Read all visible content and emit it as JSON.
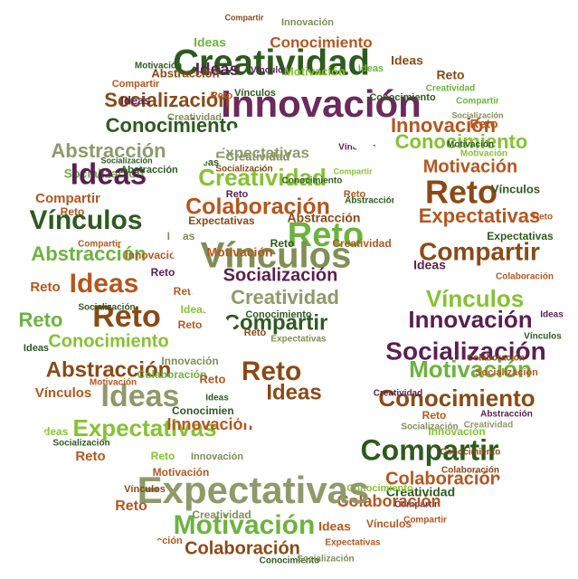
{
  "colors": {
    "brown": "#8a4a16",
    "orange_brown": "#b5561f",
    "olive": "#7f8f55",
    "sage": "#8f9a6a",
    "green": "#6db33f",
    "lime": "#86c232",
    "dark_green": "#2e5a1f",
    "purple": "#5a1f52",
    "plum": "#6b2a5c",
    "shape_fill": "#ffffff",
    "background": "#ffffff"
  },
  "words": [
    "Creatividad",
    "Innovación",
    "Conocimiento",
    "Ideas",
    "Reto",
    "Vínculos",
    "Abstracción",
    "Socialización",
    "Expectativas",
    "Motivación",
    "Colaboración",
    "Compartir"
  ]
}
